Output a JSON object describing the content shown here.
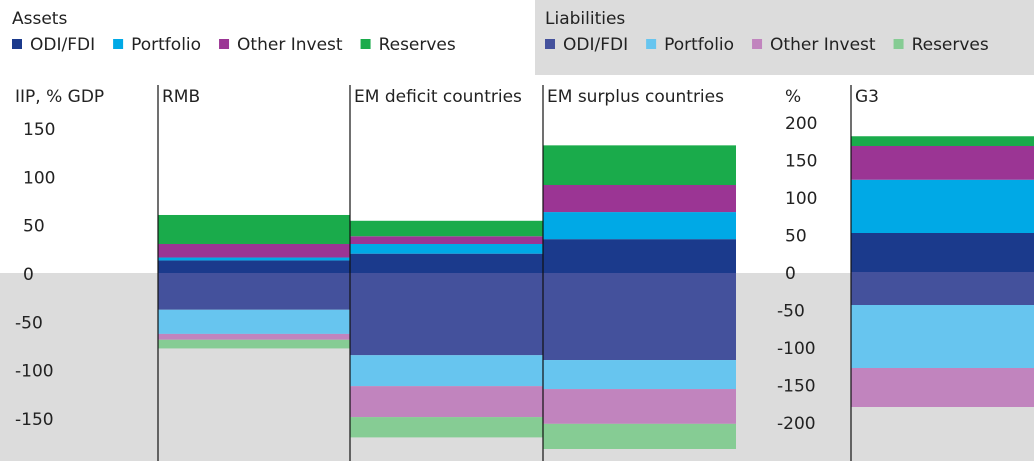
{
  "chart_data": [
    {
      "type": "stacked-bar",
      "ylabel": "IIP, % GDP",
      "categories": [
        "RMB",
        "EM deficit countries",
        "EM surplus countries"
      ],
      "ylim": [
        -190,
        160
      ],
      "yticks": [
        150,
        100,
        50,
        0,
        -50,
        -100,
        -150
      ],
      "series_groups": [
        {
          "name": "Assets",
          "series": [
            {
              "name": "ODI/FDI",
              "color": "#1b3a8c",
              "values": [
                13,
                20,
                35
              ]
            },
            {
              "name": "Portfolio",
              "color": "#00a9e6",
              "values": [
                3,
                10,
                28
              ]
            },
            {
              "name": "Other Invest",
              "color": "#9b3594",
              "values": [
                14,
                8,
                28
              ]
            },
            {
              "name": "Reserves",
              "color": "#1aab4b",
              "values": [
                30,
                16,
                41
              ]
            }
          ]
        },
        {
          "name": "Liabilities",
          "series": [
            {
              "name": "ODI/FDI",
              "color": "#44519c",
              "values": [
                -38,
                -85,
                -90
              ]
            },
            {
              "name": "Portfolio",
              "color": "#67c5ef",
              "values": [
                -25,
                -32,
                -30
              ]
            },
            {
              "name": "Other Invest",
              "color": "#c184be",
              "values": [
                -6,
                -32,
                -36
              ]
            },
            {
              "name": "Reserves",
              "color": "#86cc94",
              "values": [
                -9,
                -21,
                -26
              ]
            }
          ]
        }
      ]
    },
    {
      "type": "stacked-bar",
      "ylabel": "%",
      "categories": [
        "G3"
      ],
      "ylim": [
        -252,
        215
      ],
      "yticks": [
        200,
        150,
        100,
        50,
        0,
        -50,
        -100,
        -150,
        -200
      ],
      "series_groups": [
        {
          "name": "Assets",
          "series": [
            {
              "name": "ODI/FDI",
              "color": "#1b3a8c",
              "values": [
                52
              ]
            },
            {
              "name": "Portfolio",
              "color": "#00a9e6",
              "values": [
                71
              ]
            },
            {
              "name": "Other Invest",
              "color": "#9b3594",
              "values": [
                45
              ]
            },
            {
              "name": "Reserves",
              "color": "#1aab4b",
              "values": [
                13
              ]
            }
          ]
        },
        {
          "name": "Liabilities",
          "series": [
            {
              "name": "ODI/FDI",
              "color": "#44519c",
              "values": [
                -44
              ]
            },
            {
              "name": "Portfolio",
              "color": "#67c5ef",
              "values": [
                -84
              ]
            },
            {
              "name": "Other Invest",
              "color": "#c184be",
              "values": [
                -52
              ]
            },
            {
              "name": "Reserves",
              "color": "#86cc94",
              "values": [
                0
              ]
            }
          ]
        }
      ]
    }
  ]
}
